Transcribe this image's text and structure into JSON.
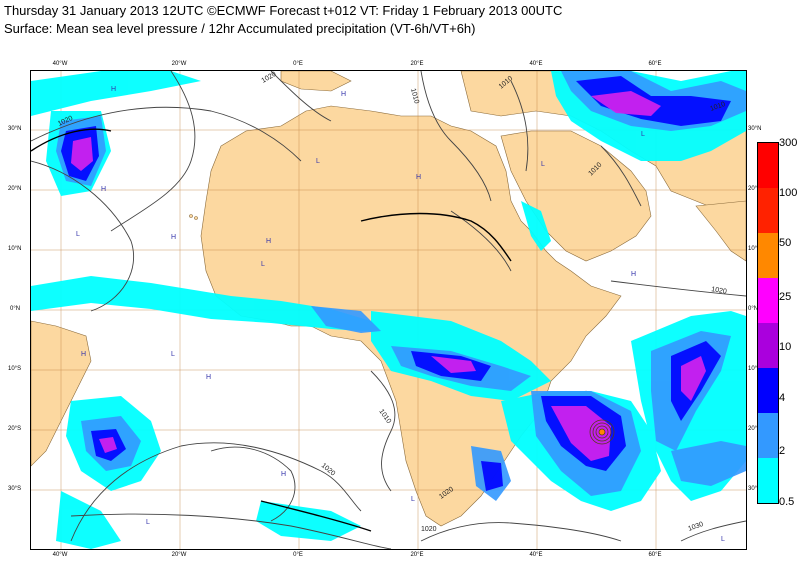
{
  "title_line1": "Thursday 31 January 2013 12UTC ©ECMWF Forecast t+012 VT: Friday 1 February 2013 00UTC",
  "title_line2": "Surface: Mean sea level pressure / 12hr Accumulated precipitation (VT-6h/VT+6h)",
  "lon_labels": [
    "40°W",
    "20°W",
    "0°E",
    "20°E",
    "40°E",
    "60°E"
  ],
  "lat_labels": [
    "30°N",
    "20°N",
    "10°N",
    "0°N",
    "10°S",
    "20°S",
    "30°S"
  ],
  "lat_labels_right": [
    "30°N",
    "20°N",
    "10°N",
    "0°N",
    "10°S",
    "20°S",
    "30°S"
  ],
  "isobar_labels": [
    "1020",
    "1020",
    "1010",
    "1010",
    "1010",
    "1010",
    "1020",
    "1020",
    "1010",
    "1020",
    "1030",
    "1020"
  ],
  "pressure_centers": [
    "H",
    "H",
    "H",
    "H",
    "H",
    "L",
    "L",
    "L",
    "L",
    "H",
    "H",
    "H",
    "L",
    "L",
    "H",
    "H",
    "L",
    "L",
    "L"
  ],
  "legend": {
    "labels": [
      "300",
      "100",
      "50",
      "25",
      "10",
      "4",
      "2",
      "0.5"
    ],
    "colors": [
      "#ff0000",
      "#ff2200",
      "#ff8800",
      "#ff00ff",
      "#aa00dd",
      "#0000ff",
      "#3399ff",
      "#00ffff"
    ]
  },
  "colors": {
    "land": "#fcd8a0",
    "ocean": "#ffffff",
    "grid": "#c08040",
    "isobar": "#444444",
    "precip_light": "#00ffff",
    "precip_mid": "#3399ff",
    "precip_heavy": "#0000ff",
    "precip_very_heavy": "#cc22ee"
  }
}
